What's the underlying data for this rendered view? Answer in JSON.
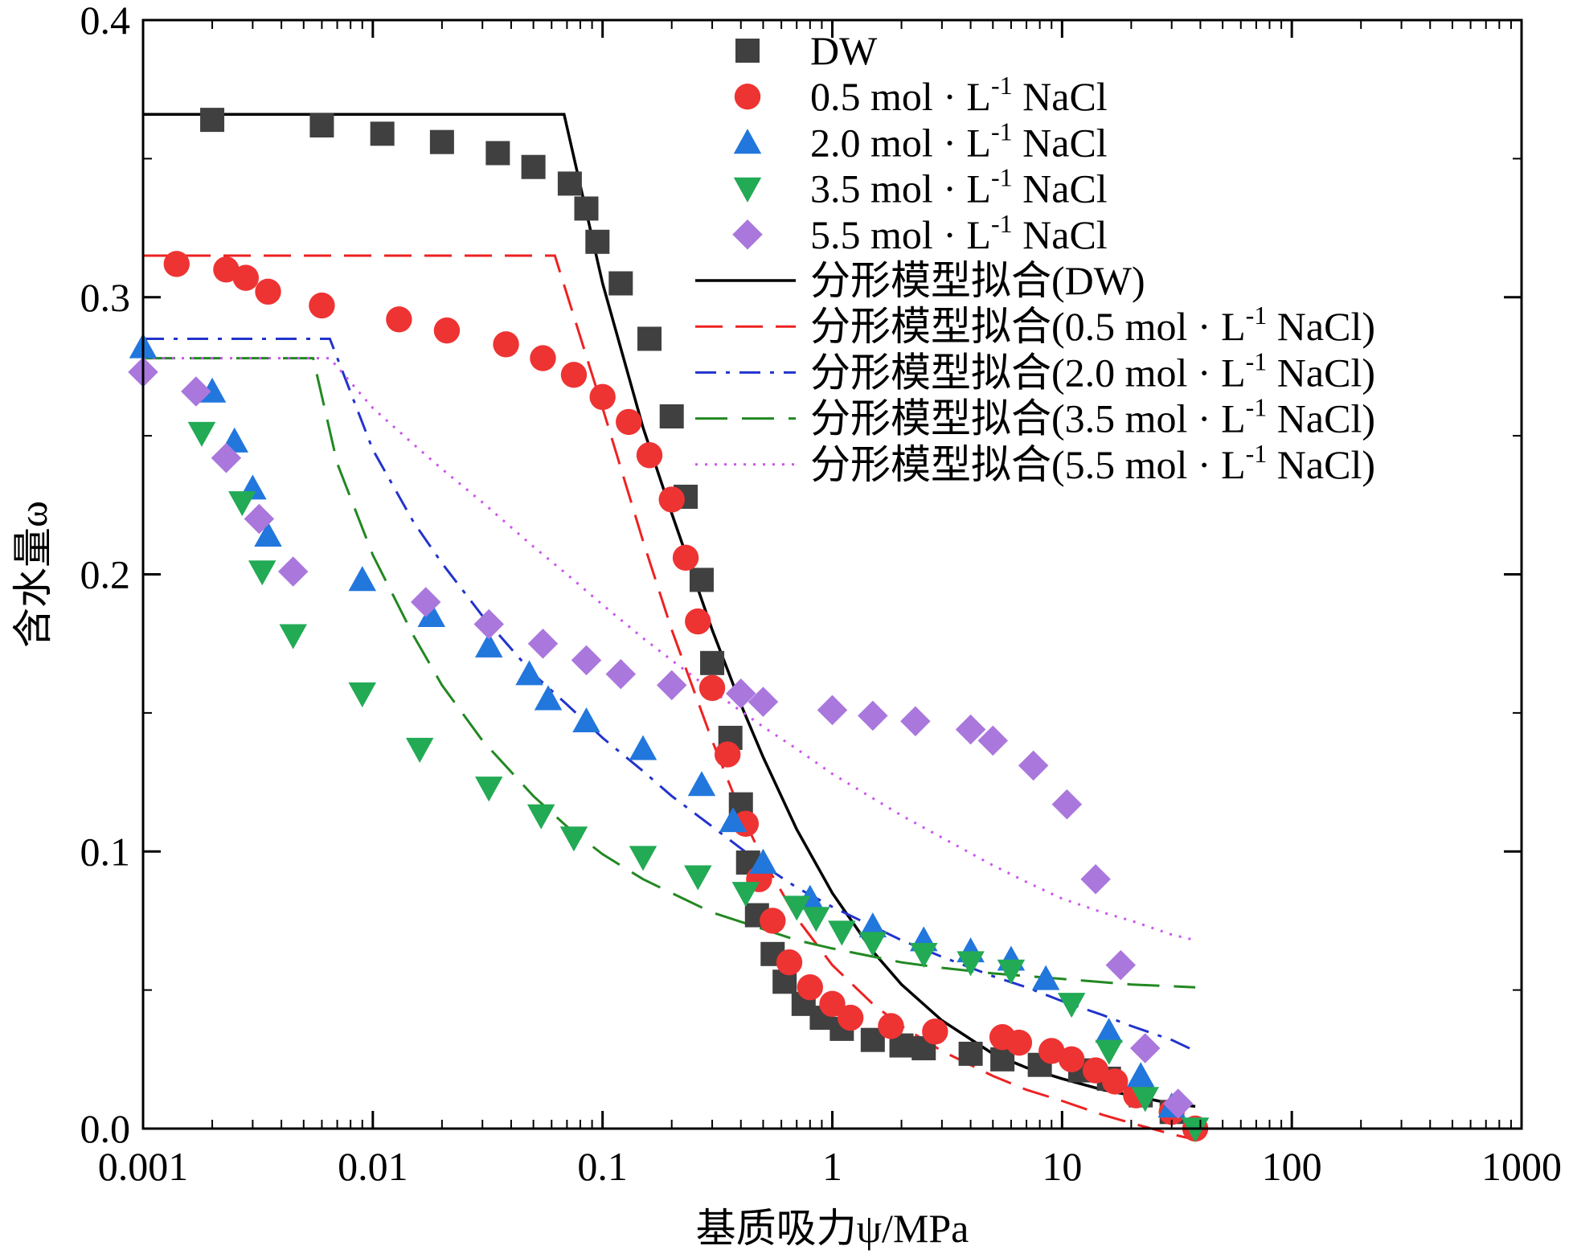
{
  "chart_data": {
    "type": "scatter",
    "xscale": "log",
    "xlim": [
      0.001,
      1000
    ],
    "ylim": [
      0.0,
      0.4
    ],
    "xlabel": "基质吸力ψ/MPa",
    "ylabel": "含水量ω",
    "grid": false,
    "legend_position": "top-right",
    "x_ticks": [
      {
        "value": 0.001,
        "label": "0.001"
      },
      {
        "value": 0.01,
        "label": "0.01"
      },
      {
        "value": 0.1,
        "label": "0.1"
      },
      {
        "value": 1,
        "label": "1"
      },
      {
        "value": 10,
        "label": "10"
      },
      {
        "value": 100,
        "label": "100"
      },
      {
        "value": 1000,
        "label": "1000"
      }
    ],
    "y_ticks": [
      {
        "value": 0.0,
        "label": "0.0"
      },
      {
        "value": 0.1,
        "label": "0.1"
      },
      {
        "value": 0.2,
        "label": "0.2"
      },
      {
        "value": 0.3,
        "label": "0.3"
      },
      {
        "value": 0.4,
        "label": "0.4"
      }
    ],
    "series": [
      {
        "name": "DW",
        "kind": "markers",
        "marker": "square",
        "color": "#404040",
        "x": [
          0.002,
          0.006,
          0.011,
          0.02,
          0.035,
          0.05,
          0.072,
          0.085,
          0.095,
          0.12,
          0.16,
          0.2,
          0.23,
          0.27,
          0.3,
          0.36,
          0.4,
          0.43,
          0.47,
          0.55,
          0.62,
          0.75,
          0.9,
          1.1,
          1.5,
          2.0,
          2.5,
          4.0,
          5.5,
          8.0,
          12.0,
          16.0,
          22.0,
          30.0
        ],
        "y": [
          0.364,
          0.362,
          0.359,
          0.356,
          0.352,
          0.347,
          0.341,
          0.332,
          0.32,
          0.305,
          0.285,
          0.257,
          0.228,
          0.198,
          0.168,
          0.141,
          0.117,
          0.096,
          0.077,
          0.063,
          0.053,
          0.045,
          0.04,
          0.036,
          0.032,
          0.03,
          0.029,
          0.027,
          0.025,
          0.023,
          0.021,
          0.018,
          0.012,
          0.006
        ]
      },
      {
        "name": "0.5 mol·L-1 NaCl",
        "kind": "markers",
        "marker": "circle",
        "color": "#ee3333",
        "x": [
          0.0014,
          0.0023,
          0.0028,
          0.0035,
          0.006,
          0.013,
          0.021,
          0.038,
          0.055,
          0.075,
          0.1,
          0.13,
          0.16,
          0.2,
          0.23,
          0.26,
          0.3,
          0.35,
          0.42,
          0.48,
          0.55,
          0.65,
          0.8,
          1.0,
          1.2,
          1.8,
          2.8,
          5.5,
          6.5,
          9.0,
          11.0,
          14.0,
          17.0,
          21.0,
          30.0,
          38.0
        ],
        "y": [
          0.312,
          0.31,
          0.307,
          0.302,
          0.297,
          0.292,
          0.288,
          0.283,
          0.278,
          0.272,
          0.264,
          0.255,
          0.243,
          0.227,
          0.206,
          0.183,
          0.159,
          0.135,
          0.11,
          0.09,
          0.075,
          0.06,
          0.051,
          0.045,
          0.04,
          0.037,
          0.035,
          0.033,
          0.031,
          0.028,
          0.025,
          0.021,
          0.017,
          0.012,
          0.006,
          0.0
        ]
      },
      {
        "name": "2.0 mol·L-1 NaCl",
        "kind": "markers",
        "marker": "triangle-up",
        "color": "#2277dd",
        "x": [
          0.001,
          0.002,
          0.0025,
          0.003,
          0.0035,
          0.009,
          0.018,
          0.032,
          0.048,
          0.058,
          0.085,
          0.15,
          0.27,
          0.37,
          0.5,
          0.8,
          1.5,
          2.5,
          4.0,
          6.0,
          8.5,
          16.0,
          22.0,
          30.0
        ],
        "y": [
          0.282,
          0.266,
          0.248,
          0.231,
          0.214,
          0.198,
          0.185,
          0.174,
          0.164,
          0.155,
          0.147,
          0.137,
          0.124,
          0.111,
          0.096,
          0.083,
          0.073,
          0.068,
          0.064,
          0.061,
          0.054,
          0.035,
          0.019,
          0.008
        ]
      },
      {
        "name": "3.5 mol·L-1 NaCl",
        "kind": "markers",
        "marker": "triangle-down",
        "color": "#22aa55",
        "x": [
          0.0018,
          0.0027,
          0.0033,
          0.0045,
          0.009,
          0.016,
          0.032,
          0.054,
          0.075,
          0.15,
          0.26,
          0.42,
          0.7,
          0.85,
          1.1,
          1.5,
          2.5,
          4.0,
          6.0,
          11.0,
          16.0,
          23.0,
          38.0
        ],
        "y": [
          0.251,
          0.226,
          0.201,
          0.178,
          0.157,
          0.137,
          0.123,
          0.113,
          0.105,
          0.098,
          0.091,
          0.085,
          0.08,
          0.076,
          0.071,
          0.067,
          0.063,
          0.06,
          0.057,
          0.045,
          0.028,
          0.011,
          0.0
        ]
      },
      {
        "name": "5.5 mol·L-1 NaCl",
        "kind": "markers",
        "marker": "diamond",
        "color": "#aa77dd",
        "x": [
          0.001,
          0.0017,
          0.0023,
          0.0032,
          0.0045,
          0.017,
          0.032,
          0.055,
          0.085,
          0.12,
          0.2,
          0.4,
          0.5,
          1.0,
          1.5,
          2.3,
          4.0,
          5.0,
          7.5,
          10.5,
          14.0,
          18.0,
          23.0,
          32.0
        ],
        "y": [
          0.273,
          0.266,
          0.242,
          0.22,
          0.201,
          0.19,
          0.182,
          0.175,
          0.169,
          0.164,
          0.16,
          0.157,
          0.154,
          0.151,
          0.149,
          0.147,
          0.144,
          0.14,
          0.131,
          0.117,
          0.09,
          0.059,
          0.029,
          0.009
        ]
      },
      {
        "name": "分形模型拟合(DW)",
        "kind": "line",
        "dash": "solid",
        "color": "#000000",
        "x": [
          0.001,
          0.068,
          0.1,
          0.15,
          0.2,
          0.3,
          0.4,
          0.5,
          0.7,
          1.0,
          1.5,
          2.0,
          3.0,
          5.0,
          7.0,
          10.0,
          15.0,
          20.0,
          30.0,
          38.0
        ],
        "y": [
          0.366,
          0.366,
          0.305,
          0.253,
          0.222,
          0.18,
          0.153,
          0.134,
          0.108,
          0.085,
          0.064,
          0.052,
          0.039,
          0.027,
          0.022,
          0.018,
          0.014,
          0.012,
          0.009,
          0.008
        ]
      },
      {
        "name": "分形模型拟合(0.5 mol·L-1 NaCl)",
        "kind": "line",
        "dash": "dashed",
        "color": "#ee2222",
        "x": [
          0.001,
          0.062,
          0.1,
          0.15,
          0.2,
          0.3,
          0.4,
          0.5,
          0.7,
          1.0,
          1.5,
          2.0,
          3.0,
          5.0,
          7.0,
          10.0,
          15.0,
          20.0,
          30.0,
          38.0
        ],
        "y": [
          0.315,
          0.315,
          0.26,
          0.212,
          0.18,
          0.14,
          0.114,
          0.097,
          0.076,
          0.059,
          0.045,
          0.037,
          0.028,
          0.019,
          0.014,
          0.01,
          0.005,
          0.002,
          -0.002,
          -0.004
        ]
      },
      {
        "name": "分形模型拟合(2.0 mol·L-1 NaCl)",
        "kind": "line",
        "dash": "dashdot",
        "color": "#2233cc",
        "x": [
          0.001,
          0.0065,
          0.01,
          0.015,
          0.02,
          0.03,
          0.05,
          0.07,
          0.1,
          0.15,
          0.2,
          0.3,
          0.5,
          0.7,
          1.0,
          2.0,
          3.0,
          5.0,
          7.0,
          10.0,
          15.0,
          20.0,
          30.0,
          38.0
        ],
        "y": [
          0.285,
          0.285,
          0.245,
          0.219,
          0.204,
          0.185,
          0.164,
          0.153,
          0.141,
          0.129,
          0.12,
          0.109,
          0.095,
          0.087,
          0.08,
          0.068,
          0.062,
          0.055,
          0.051,
          0.046,
          0.041,
          0.037,
          0.032,
          0.028
        ]
      },
      {
        "name": "分形模型拟合(3.5 mol·L-1 NaCl)",
        "kind": "line",
        "dash": "longdash",
        "color": "#228822",
        "x": [
          0.001,
          0.0055,
          0.007,
          0.01,
          0.015,
          0.02,
          0.03,
          0.05,
          0.07,
          0.1,
          0.15,
          0.2,
          0.3,
          0.5,
          0.7,
          1.0,
          2.0,
          3.0,
          5.0,
          10.0,
          20.0,
          38.0
        ],
        "y": [
          0.278,
          0.278,
          0.24,
          0.207,
          0.178,
          0.16,
          0.14,
          0.12,
          0.109,
          0.099,
          0.09,
          0.085,
          0.078,
          0.072,
          0.068,
          0.065,
          0.06,
          0.058,
          0.056,
          0.054,
          0.052,
          0.051
        ]
      },
      {
        "name": "分形模型拟合(5.5 mol·L-1 NaCl)",
        "kind": "line",
        "dash": "dotted",
        "color": "#cc55ee",
        "x": [
          0.001,
          0.0065,
          0.01,
          0.015,
          0.02,
          0.03,
          0.05,
          0.07,
          0.1,
          0.15,
          0.2,
          0.3,
          0.5,
          0.7,
          1.0,
          2.0,
          3.0,
          5.0,
          7.0,
          10.0,
          15.0,
          20.0,
          30.0,
          38.0
        ],
        "y": [
          0.278,
          0.278,
          0.26,
          0.247,
          0.238,
          0.226,
          0.21,
          0.2,
          0.189,
          0.177,
          0.169,
          0.158,
          0.145,
          0.137,
          0.128,
          0.113,
          0.105,
          0.095,
          0.089,
          0.083,
          0.078,
          0.075,
          0.07,
          0.068
        ]
      }
    ],
    "legend": [
      {
        "series": 0,
        "main": "DW"
      },
      {
        "series": 1,
        "main": "0.5 mol · L",
        "sup": "-1",
        "post": " NaCl"
      },
      {
        "series": 2,
        "main": "2.0 mol · L",
        "sup": "-1",
        "post": " NaCl"
      },
      {
        "series": 3,
        "main": "3.5 mol · L",
        "sup": "-1",
        "post": " NaCl"
      },
      {
        "series": 4,
        "main": "5.5 mol · L",
        "sup": "-1",
        "post": " NaCl"
      },
      {
        "series": 5,
        "main": "分形模型拟合(DW)"
      },
      {
        "series": 6,
        "main": "分形模型拟合(0.5 mol · L",
        "sup": "-1",
        "post": " NaCl)"
      },
      {
        "series": 7,
        "main": "分形模型拟合(2.0 mol · L",
        "sup": "-1",
        "post": " NaCl)"
      },
      {
        "series": 8,
        "main": "分形模型拟合(3.5 mol · L",
        "sup": "-1",
        "post": " NaCl)"
      },
      {
        "series": 9,
        "main": "分形模型拟合(5.5 mol · L",
        "sup": "-1",
        "post": " NaCl)"
      }
    ]
  }
}
